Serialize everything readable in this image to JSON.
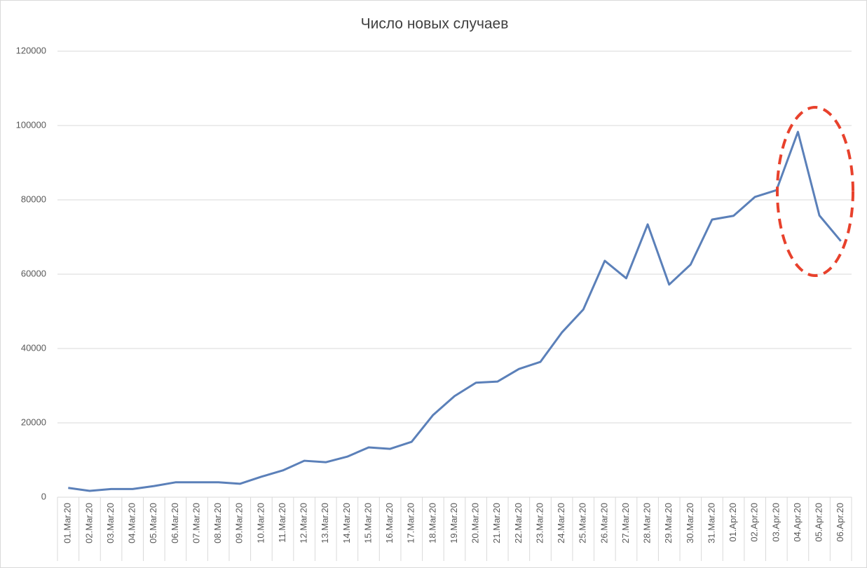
{
  "chart_data": {
    "type": "line",
    "title": "Число новых случаев",
    "categories": [
      "01.Mar.20",
      "02.Mar.20",
      "03.Mar.20",
      "04.Mar.20",
      "05.Mar.20",
      "06.Mar.20",
      "07.Mar.20",
      "08.Mar.20",
      "09.Mar.20",
      "10.Mar.20",
      "11.Mar.20",
      "12.Mar.20",
      "13.Mar.20",
      "14.Mar.20",
      "15.Mar.20",
      "16.Mar.20",
      "17.Mar.20",
      "18.Mar.20",
      "19.Mar.20",
      "20.Mar.20",
      "21.Mar.20",
      "22.Mar.20",
      "23.Mar.20",
      "24.Mar.20",
      "25.Mar.20",
      "26.Mar.20",
      "27.Mar.20",
      "28.Mar.20",
      "29.Mar.20",
      "30.Mar.20",
      "31.Mar.20",
      "01.Apr.20",
      "02.Apr.20",
      "03.Apr.20",
      "04.Apr.20",
      "05.Apr.20",
      "06.Apr.20"
    ],
    "values": [
      2500,
      1700,
      2200,
      2200,
      3000,
      4000,
      4000,
      4000,
      3600,
      5500,
      7200,
      9800,
      9400,
      10900,
      13400,
      13000,
      14900,
      22100,
      27200,
      30800,
      31100,
      34500,
      36400,
      44300,
      50500,
      63600,
      58900,
      73400,
      57200,
      62600,
      74700,
      75700,
      80800,
      82600,
      98300,
      75800,
      68900
    ],
    "color": "#5b80b9",
    "ylim": [
      0,
      120000
    ],
    "yticks": [
      0,
      20000,
      40000,
      60000,
      80000,
      100000,
      120000
    ],
    "grid": true
  }
}
